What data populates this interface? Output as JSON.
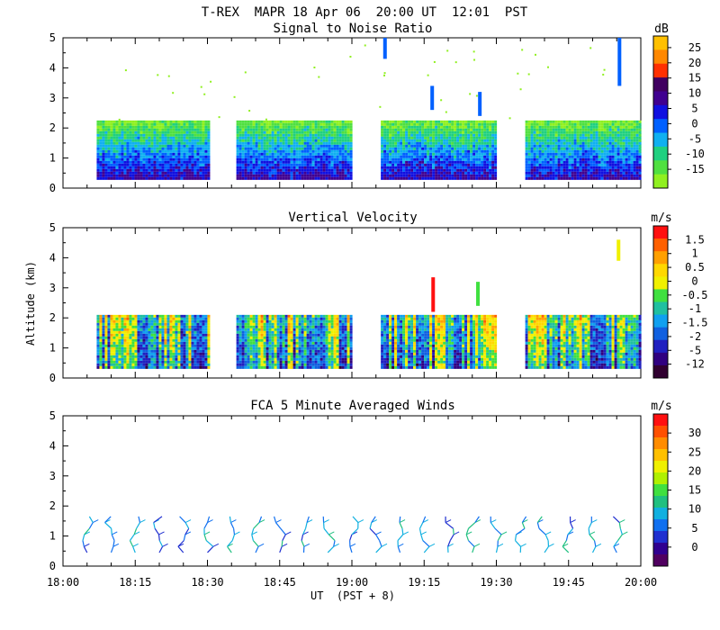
{
  "header": {
    "title": "T-REX  MAPR 18 Apr 06  20:00 UT  12:01  PST"
  },
  "chart_data": [
    {
      "type": "heatmap",
      "title": "Signal to Noise Ratio",
      "ylabel": "",
      "ylim": [
        0,
        5
      ],
      "yticks": [
        "0",
        "1",
        "2",
        "3",
        "4",
        "5"
      ],
      "colorbar": {
        "unit": "dB",
        "labels": [
          "25",
          "20",
          "15",
          "10",
          "5",
          "0",
          "-5",
          "-10",
          "-15"
        ],
        "colors": [
          "#ffc000",
          "#ff8800",
          "#ff3000",
          "#400060",
          "#400090",
          "#1010e0",
          "#0060ff",
          "#10b0f0",
          "#20d080",
          "#50e040",
          "#90f020"
        ]
      },
      "segments": [
        [
          "18:07",
          "18:30"
        ],
        [
          "18:36",
          "19:00"
        ],
        [
          "19:06",
          "19:30"
        ],
        [
          "19:36",
          "20:00"
        ]
      ]
    },
    {
      "type": "heatmap",
      "title": "Vertical Velocity",
      "ylabel": "Altitude (km)",
      "ylim": [
        0,
        5
      ],
      "yticks": [
        "0",
        "1",
        "2",
        "3",
        "4",
        "5"
      ],
      "colorbar": {
        "unit": "m/s",
        "labels": [
          "1.5",
          "1",
          "0.5",
          "0",
          "-0.5",
          "-1",
          "-1.5",
          "-2",
          "-5",
          "-12"
        ],
        "colors": [
          "#ff1010",
          "#ff6000",
          "#ffa000",
          "#ffd800",
          "#f0f000",
          "#40e040",
          "#20c0a0",
          "#10a0f0",
          "#1060e0",
          "#2020c0",
          "#300080",
          "#300030"
        ]
      },
      "segments": [
        [
          "18:07",
          "18:30"
        ],
        [
          "18:36",
          "19:00"
        ],
        [
          "19:06",
          "19:30"
        ],
        [
          "19:36",
          "20:00"
        ]
      ]
    },
    {
      "type": "scatter",
      "title": "FCA 5 Minute Averaged Winds",
      "xlabel": "UT  (PST + 8)",
      "ylim": [
        0,
        5
      ],
      "yticks": [
        "0",
        "1",
        "2",
        "3",
        "4",
        "5"
      ],
      "xticks": [
        "18:00",
        "18:15",
        "18:30",
        "18:45",
        "19:00",
        "19:15",
        "19:30",
        "19:45",
        "20:00"
      ],
      "xlim_minutes": [
        0,
        120
      ],
      "colorbar": {
        "unit": "m/s",
        "labels": [
          "30",
          "25",
          "20",
          "15",
          "10",
          "5",
          "0"
        ],
        "colors": [
          "#ff1010",
          "#ff5000",
          "#ff8c00",
          "#ffc000",
          "#f0f000",
          "#b0f000",
          "#40e040",
          "#20c080",
          "#10b0e0",
          "#1070f0",
          "#2030d0",
          "#300090",
          "#500060"
        ]
      },
      "profiles_minutes": [
        5,
        10,
        15,
        20,
        25,
        30,
        35,
        40,
        45,
        50,
        55,
        60,
        65,
        70,
        75,
        80,
        85,
        90,
        95,
        100,
        105,
        110,
        115
      ]
    }
  ],
  "axis": {
    "xlabel": "UT  (PST + 8)"
  }
}
